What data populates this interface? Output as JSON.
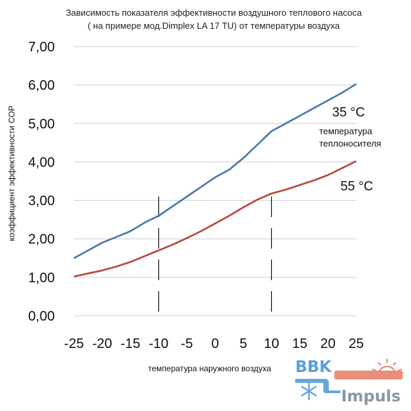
{
  "chart_data": {
    "type": "line",
    "title_lines": [
      "Зависимость показателя эффективности воздушного теплового насоса",
      "( на примере мод.Dimplex LA 17 TU) от температуры воздуха"
    ],
    "xlabel": "температура наружного воздуха",
    "ylabel": "коэффициент эффективности COP",
    "xlim": [
      -25,
      25
    ],
    "ylim": [
      0,
      7
    ],
    "x_ticks": [
      "-25",
      "-20",
      "-15",
      "-10",
      "-5",
      "0",
      "5",
      "10",
      "15",
      "20",
      "25"
    ],
    "y_ticks": [
      "0,00",
      "1,00",
      "2,00",
      "3,00",
      "4,00",
      "5,00",
      "6,00",
      "7,00"
    ],
    "grid": "horizontal",
    "x": [
      -25,
      -22.5,
      -20,
      -17.5,
      -15,
      -12.5,
      -10,
      -7.5,
      -5,
      -2.5,
      0,
      2.5,
      5,
      7.5,
      10,
      12.5,
      15,
      17.5,
      20,
      22.5,
      25
    ],
    "series": [
      {
        "color": "#4a78ac",
        "values": [
          1.5,
          1.7,
          1.9,
          2.05,
          2.2,
          2.42,
          2.6,
          2.85,
          3.1,
          3.35,
          3.6,
          3.8,
          4.1,
          4.45,
          4.8,
          5.0,
          5.2,
          5.4,
          5.6,
          5.8,
          6.03
        ]
      },
      {
        "color": "#b9473f",
        "values": [
          1.02,
          1.1,
          1.18,
          1.28,
          1.4,
          1.55,
          1.7,
          1.85,
          2.02,
          2.2,
          2.4,
          2.6,
          2.82,
          3.02,
          3.18,
          3.28,
          3.4,
          3.52,
          3.66,
          3.84,
          4.02
        ]
      }
    ],
    "annotations": {
      "series1_label": "35 °C",
      "carrier_line1": "температура",
      "carrier_line2": "теплоносителя",
      "series2_label": "55 °C"
    },
    "markers_x": [
      -10,
      10
    ]
  },
  "logo": {
    "brand_top": "BBK",
    "brand_bottom": "Impuls",
    "icon_cold": "snowflake-icon",
    "icon_warm": "sun-icon",
    "color_cold": "#6aa6dc",
    "color_warm": "#e8907a"
  }
}
